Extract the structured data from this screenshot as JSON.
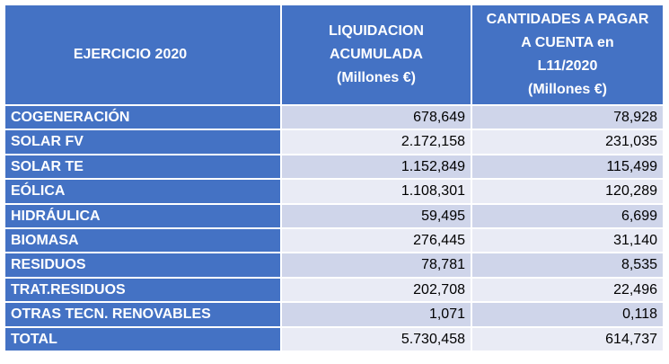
{
  "header": {
    "col1": "EJERCICIO 2020",
    "col2_lines": [
      "LIQUIDACION",
      "ACUMULADA",
      "(Millones €)"
    ],
    "col3_lines": [
      "CANTIDADES A PAGAR",
      "A CUENTA en",
      "L11/2020",
      "(Millones €)"
    ]
  },
  "rows": [
    {
      "name": "COGENERACIÓN",
      "liquidacion": "678,649",
      "cuenta": "78,928"
    },
    {
      "name": "SOLAR FV",
      "liquidacion": "2.172,158",
      "cuenta": "231,035"
    },
    {
      "name": "SOLAR TE",
      "liquidacion": "1.152,849",
      "cuenta": "115,499"
    },
    {
      "name": "EÓLICA",
      "liquidacion": "1.108,301",
      "cuenta": "120,289"
    },
    {
      "name": "HIDRÁULICA",
      "liquidacion": "59,495",
      "cuenta": "6,699"
    },
    {
      "name": "BIOMASA",
      "liquidacion": "276,445",
      "cuenta": "31,140"
    },
    {
      "name": "RESIDUOS",
      "liquidacion": "78,781",
      "cuenta": "8,535"
    },
    {
      "name": "TRAT.RESIDUOS",
      "liquidacion": "202,708",
      "cuenta": "22,496"
    },
    {
      "name": "OTRAS TECN. RENOVABLES",
      "liquidacion": "1,071",
      "cuenta": "0,118"
    },
    {
      "name": "TOTAL",
      "liquidacion": "5.730,458",
      "cuenta": "614,737"
    }
  ],
  "colors": {
    "header_bg": "#4472c4",
    "row_band_dark": "#cfd5ea",
    "row_band_light": "#e9ebf5"
  }
}
